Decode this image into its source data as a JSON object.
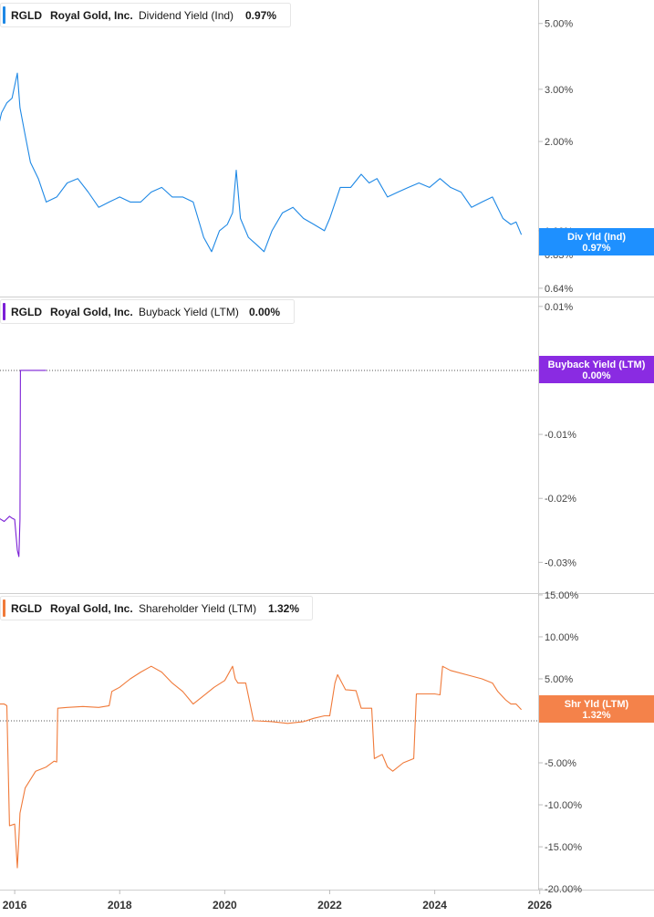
{
  "chart_data": [
    {
      "type": "line",
      "ticker": "RGLD",
      "company": "Royal Gold, Inc.",
      "metric": "Dividend Yield (Ind)",
      "value_label": "0.97%",
      "color": "#1e88e5",
      "scale": "log",
      "yticks": [
        "5.00%",
        "3.00%",
        "2.00%",
        "1.00%",
        "0.83%",
        "0.64%"
      ],
      "ytick_values": [
        5.0,
        3.0,
        2.0,
        1.0,
        0.83,
        0.64
      ],
      "ylim": [
        0.6,
        6.0
      ],
      "badge": {
        "line1": "Div Yld (Ind)",
        "line2": "0.97%",
        "color": "#1e90ff"
      },
      "x": [
        2015.0,
        2015.15,
        2015.3,
        2015.45,
        2015.55,
        2015.65,
        2015.75,
        2015.85,
        2015.95,
        2016.05,
        2016.1,
        2016.2,
        2016.3,
        2016.45,
        2016.6,
        2016.8,
        2017.0,
        2017.2,
        2017.4,
        2017.6,
        2017.8,
        2018.0,
        2018.2,
        2018.4,
        2018.6,
        2018.8,
        2019.0,
        2019.2,
        2019.4,
        2019.6,
        2019.75,
        2019.9,
        2020.05,
        2020.15,
        2020.22,
        2020.3,
        2020.45,
        2020.6,
        2020.75,
        2020.9,
        2021.1,
        2021.3,
        2021.5,
        2021.7,
        2021.9,
        2022.0,
        2022.2,
        2022.4,
        2022.6,
        2022.75,
        2022.9,
        2023.1,
        2023.3,
        2023.5,
        2023.7,
        2023.9,
        2024.1,
        2024.3,
        2024.5,
        2024.7,
        2024.9,
        2025.1,
        2025.3,
        2025.45,
        2025.55,
        2025.65
      ],
      "values": [
        2.2,
        2.3,
        2.0,
        1.85,
        1.9,
        2.1,
        2.5,
        2.7,
        2.8,
        3.4,
        2.6,
        2.1,
        1.7,
        1.5,
        1.25,
        1.3,
        1.45,
        1.5,
        1.35,
        1.2,
        1.25,
        1.3,
        1.25,
        1.25,
        1.35,
        1.4,
        1.3,
        1.3,
        1.25,
        0.95,
        0.85,
        1.0,
        1.05,
        1.15,
        1.6,
        1.1,
        0.95,
        0.9,
        0.85,
        1.0,
        1.15,
        1.2,
        1.1,
        1.05,
        1.0,
        1.1,
        1.4,
        1.4,
        1.55,
        1.45,
        1.5,
        1.3,
        1.35,
        1.4,
        1.45,
        1.4,
        1.5,
        1.4,
        1.35,
        1.2,
        1.25,
        1.3,
        1.1,
        1.05,
        1.07,
        0.97
      ]
    },
    {
      "type": "line",
      "ticker": "RGLD",
      "company": "Royal Gold, Inc.",
      "metric": "Buyback Yield (LTM)",
      "value_label": "0.00%",
      "color": "#7b1fd6",
      "scale": "linear",
      "yticks": [
        "0.01%",
        "-0.01%",
        "-0.02%",
        "-0.03%"
      ],
      "ytick_values": [
        0.01,
        -0.01,
        -0.02,
        -0.03
      ],
      "ylim": [
        -0.0348,
        0.0114
      ],
      "zero_line": true,
      "badge": {
        "line1": "Buyback Yield (LTM)",
        "line2": "0.00%",
        "color": "#8a2be2"
      },
      "x": [
        2015.0,
        2015.1,
        2015.2,
        2015.3,
        2015.4,
        2015.5,
        2015.6,
        2015.7,
        2015.8,
        2015.9,
        2015.95,
        2016.0,
        2016.05,
        2016.08,
        2016.1,
        2016.11,
        2016.3,
        2016.6
      ],
      "values": [
        -0.0245,
        -0.0238,
        -0.024,
        -0.0233,
        -0.0236,
        -0.0228,
        -0.0238,
        -0.0231,
        -0.0236,
        -0.0228,
        -0.0231,
        -0.0233,
        -0.0281,
        -0.0291,
        -0.0233,
        0.0,
        0.0,
        0.0
      ]
    },
    {
      "type": "line",
      "ticker": "RGLD",
      "company": "Royal Gold, Inc.",
      "metric": "Shareholder Yield (LTM)",
      "value_label": "1.32%",
      "color": "#f07a3a",
      "scale": "linear",
      "yticks": [
        "15.00%",
        "10.00%",
        "5.00%",
        "-5.00%",
        "-10.00%",
        "-15.00%",
        "-20.00%"
      ],
      "ytick_values": [
        15,
        10,
        5,
        -5,
        -10,
        -15,
        -20
      ],
      "ylim": [
        -20.1,
        15.1
      ],
      "zero_line": true,
      "badge": {
        "line1": "Shr Yld (LTM)",
        "line2": "1.32%",
        "color": "#f4824a"
      },
      "x": [
        2015.0,
        2015.3,
        2015.6,
        2015.8,
        2015.85,
        2015.9,
        2016.0,
        2016.05,
        2016.08,
        2016.1,
        2016.2,
        2016.4,
        2016.6,
        2016.75,
        2016.8,
        2016.82,
        2017.0,
        2017.3,
        2017.6,
        2017.8,
        2017.85,
        2018.0,
        2018.2,
        2018.4,
        2018.6,
        2018.8,
        2019.0,
        2019.2,
        2019.4,
        2019.6,
        2019.8,
        2020.0,
        2020.15,
        2020.2,
        2020.25,
        2020.4,
        2020.55,
        2020.6,
        2020.9,
        2021.2,
        2021.5,
        2021.7,
        2021.9,
        2022.0,
        2022.1,
        2022.15,
        2022.3,
        2022.5,
        2022.6,
        2022.8,
        2022.85,
        2023.0,
        2023.1,
        2023.2,
        2023.4,
        2023.6,
        2023.65,
        2024.0,
        2024.1,
        2024.15,
        2024.3,
        2024.6,
        2024.9,
        2025.1,
        2025.2,
        2025.35,
        2025.45,
        2025.55,
        2025.65
      ],
      "values": [
        2.0,
        2.0,
        2.0,
        2.0,
        1.8,
        -12.5,
        -12.3,
        -17.5,
        -14.0,
        -11.0,
        -8.0,
        -6.0,
        -5.5,
        -4.8,
        -4.9,
        1.5,
        1.6,
        1.7,
        1.6,
        1.8,
        3.5,
        4.0,
        5.0,
        5.8,
        6.5,
        5.8,
        4.5,
        3.5,
        2.0,
        3.0,
        4.0,
        4.8,
        6.5,
        5.0,
        4.5,
        4.5,
        0.0,
        0.0,
        -0.1,
        -0.3,
        -0.1,
        0.3,
        0.6,
        0.6,
        4.5,
        5.5,
        3.7,
        3.6,
        1.5,
        1.5,
        -4.5,
        -4.0,
        -5.5,
        -6.0,
        -5.0,
        -4.5,
        3.2,
        3.2,
        3.1,
        6.5,
        6.0,
        5.5,
        5.0,
        4.5,
        3.5,
        2.5,
        2.0,
        2.0,
        1.32
      ]
    }
  ],
  "x_axis": {
    "ticks": [
      "2016",
      "2018",
      "2020",
      "2022",
      "2024",
      "2026"
    ],
    "tick_values": [
      2016,
      2018,
      2020,
      2022,
      2024,
      2026
    ],
    "xlim": [
      2015.72,
      2025.97
    ]
  }
}
